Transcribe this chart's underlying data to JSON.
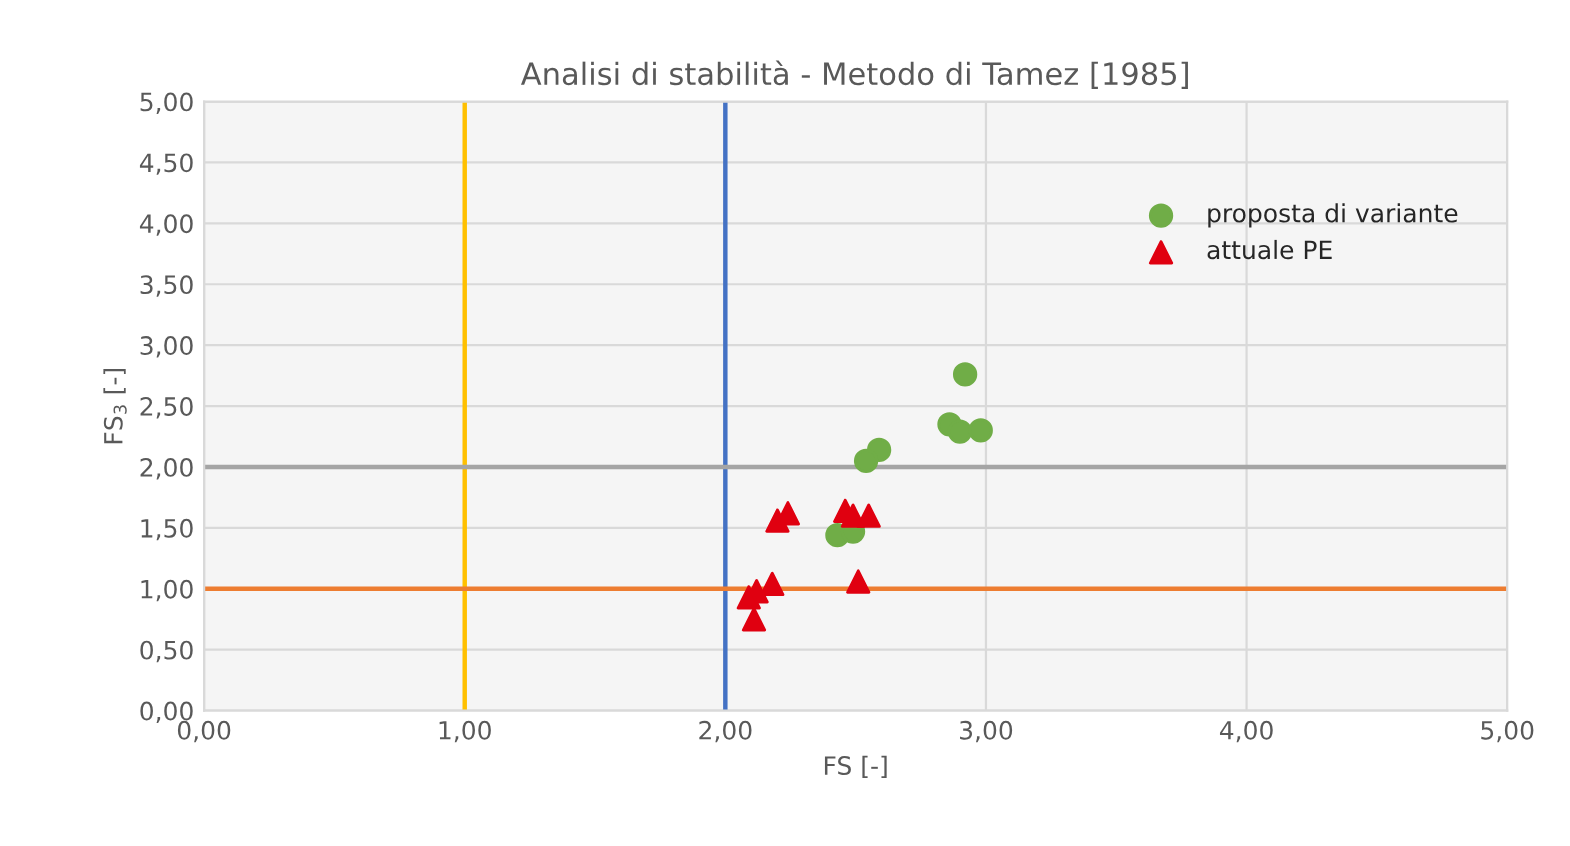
{
  "chart_data": {
    "type": "scatter",
    "title": "Analisi di stabilità - Metodo di Tamez [1985]",
    "xlabel": "FS [-]",
    "ylabel": "FS$_{3}$ [-]",
    "xlim": [
      0,
      5
    ],
    "ylim": [
      0,
      5
    ],
    "xticks": [
      {
        "value": 0,
        "label": "0,00"
      },
      {
        "value": 1,
        "label": "1,00"
      },
      {
        "value": 2,
        "label": "2,00"
      },
      {
        "value": 3,
        "label": "3,00"
      },
      {
        "value": 4,
        "label": "4,00"
      },
      {
        "value": 5,
        "label": "5,00"
      }
    ],
    "yticks": [
      {
        "value": 0,
        "label": "0,00"
      },
      {
        "value": 0.5,
        "label": "0,50"
      },
      {
        "value": 1,
        "label": "1,00"
      },
      {
        "value": 1.5,
        "label": "1,50"
      },
      {
        "value": 2,
        "label": "2,00"
      },
      {
        "value": 2.5,
        "label": "2,50"
      },
      {
        "value": 3,
        "label": "3,00"
      },
      {
        "value": 3.5,
        "label": "3,50"
      },
      {
        "value": 4,
        "label": "4,00"
      },
      {
        "value": 4.5,
        "label": "4,50"
      },
      {
        "value": 5,
        "label": "5,00"
      }
    ],
    "grid": true,
    "legend": "top right",
    "series": [
      {
        "name": "proposta di variante",
        "color": "#70ad47",
        "marker": "circle",
        "x": [
          2.92,
          2.86,
          2.9,
          2.98,
          2.59,
          2.54,
          2.43,
          2.49
        ],
        "values": [
          2.76,
          2.35,
          2.29,
          2.3,
          2.14,
          2.05,
          1.44,
          1.47
        ]
      },
      {
        "name": "attuale PE",
        "color": "#e00010",
        "marker": "triangle",
        "x": [
          2.2,
          2.24,
          2.46,
          2.49,
          2.55,
          2.51,
          2.18,
          2.12,
          2.09,
          2.11
        ],
        "values": [
          1.56,
          1.62,
          1.64,
          1.6,
          1.6,
          1.06,
          1.04,
          0.98,
          0.93,
          0.75
        ]
      }
    ],
    "ref_lines": [
      {
        "axis": "x",
        "value": 1,
        "color": "#ffc000"
      },
      {
        "axis": "x",
        "value": 2,
        "color": "#4472c4"
      },
      {
        "axis": "y",
        "value": 2,
        "color": "#a5a5a5"
      },
      {
        "axis": "y",
        "value": 1,
        "color": "#ed7d31"
      }
    ]
  }
}
